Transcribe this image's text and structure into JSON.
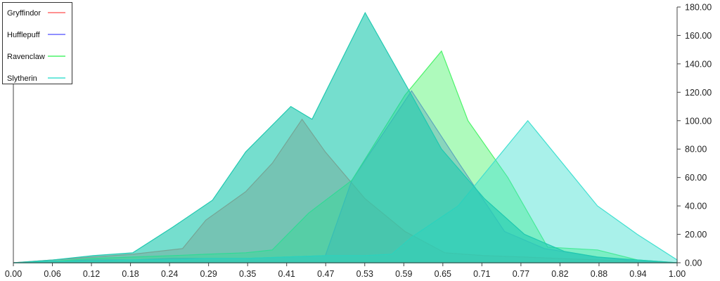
{
  "chart_data": {
    "type": "area",
    "title": "",
    "xlabel": "",
    "ylabel": "",
    "xlim": [
      0,
      1
    ],
    "ylim": [
      0,
      180
    ],
    "x_ticks": [
      "0.00",
      "0.06",
      "0.12",
      "0.18",
      "0.24",
      "0.29",
      "0.35",
      "0.41",
      "0.47",
      "0.53",
      "0.59",
      "0.65",
      "0.71",
      "0.77",
      "0.82",
      "0.88",
      "0.94",
      "1.00"
    ],
    "y_ticks": [
      "0.00",
      "20.00",
      "40.00",
      "60.00",
      "80.00",
      "100.00",
      "120.00",
      "140.00",
      "160.00",
      "180.00"
    ],
    "y_axis_side": "right",
    "grid": false,
    "legend_position": "top-left",
    "series": [
      {
        "name": "Gryffindor",
        "color": "#ff6b6b",
        "points": [
          [
            0.0,
            0
          ],
          [
            0.06,
            2
          ],
          [
            0.12,
            4
          ],
          [
            0.18,
            6
          ],
          [
            0.255,
            10
          ],
          [
            0.29,
            30
          ],
          [
            0.35,
            50
          ],
          [
            0.39,
            70
          ],
          [
            0.435,
            101
          ],
          [
            0.47,
            78
          ],
          [
            0.53,
            45
          ],
          [
            0.59,
            22
          ],
          [
            0.65,
            7
          ],
          [
            0.71,
            5
          ],
          [
            0.77,
            4
          ],
          [
            0.82,
            3
          ],
          [
            0.88,
            2
          ],
          [
            0.94,
            1
          ],
          [
            1.0,
            0
          ]
        ]
      },
      {
        "name": "Hufflepuff",
        "color": "#6b6bff",
        "points": [
          [
            0.0,
            0
          ],
          [
            0.06,
            1
          ],
          [
            0.12,
            2
          ],
          [
            0.18,
            2
          ],
          [
            0.24,
            3
          ],
          [
            0.29,
            3
          ],
          [
            0.35,
            3
          ],
          [
            0.41,
            4
          ],
          [
            0.47,
            5
          ],
          [
            0.51,
            58
          ],
          [
            0.6,
            121
          ],
          [
            0.67,
            71
          ],
          [
            0.74,
            22
          ],
          [
            0.8,
            10
          ],
          [
            0.88,
            4
          ],
          [
            0.94,
            1
          ],
          [
            1.0,
            0
          ]
        ]
      },
      {
        "name": "Ravenclaw",
        "color": "#4cf36b",
        "points": [
          [
            0.0,
            0
          ],
          [
            0.06,
            1
          ],
          [
            0.12,
            3
          ],
          [
            0.18,
            4
          ],
          [
            0.24,
            5
          ],
          [
            0.29,
            6
          ],
          [
            0.35,
            7
          ],
          [
            0.39,
            9
          ],
          [
            0.445,
            35
          ],
          [
            0.51,
            58
          ],
          [
            0.59,
            118
          ],
          [
            0.645,
            149
          ],
          [
            0.685,
            100
          ],
          [
            0.745,
            60
          ],
          [
            0.805,
            11
          ],
          [
            0.88,
            9
          ],
          [
            0.94,
            2
          ],
          [
            1.0,
            0
          ]
        ]
      },
      {
        "name": "Slytherin",
        "color": "#40e0d0",
        "points": [
          [
            0.0,
            0
          ],
          [
            0.06,
            1
          ],
          [
            0.12,
            1
          ],
          [
            0.18,
            2
          ],
          [
            0.24,
            2
          ],
          [
            0.29,
            3
          ],
          [
            0.35,
            3
          ],
          [
            0.41,
            4
          ],
          [
            0.47,
            5
          ],
          [
            0.53,
            5
          ],
          [
            0.57,
            6
          ],
          [
            0.6,
            18
          ],
          [
            0.67,
            40
          ],
          [
            0.775,
            100
          ],
          [
            0.88,
            40
          ],
          [
            0.94,
            20
          ],
          [
            1.0,
            2
          ]
        ]
      },
      {
        "name": "",
        "color": "#20c9b0",
        "points": [
          [
            0.0,
            0
          ],
          [
            0.06,
            2
          ],
          [
            0.12,
            5
          ],
          [
            0.18,
            7
          ],
          [
            0.24,
            25
          ],
          [
            0.3,
            44
          ],
          [
            0.35,
            78
          ],
          [
            0.418,
            110
          ],
          [
            0.45,
            101
          ],
          [
            0.53,
            176
          ],
          [
            0.6,
            118
          ],
          [
            0.645,
            80
          ],
          [
            0.71,
            45
          ],
          [
            0.77,
            20
          ],
          [
            0.83,
            8
          ],
          [
            0.88,
            4
          ],
          [
            0.94,
            2
          ],
          [
            1.0,
            0
          ]
        ]
      }
    ]
  }
}
